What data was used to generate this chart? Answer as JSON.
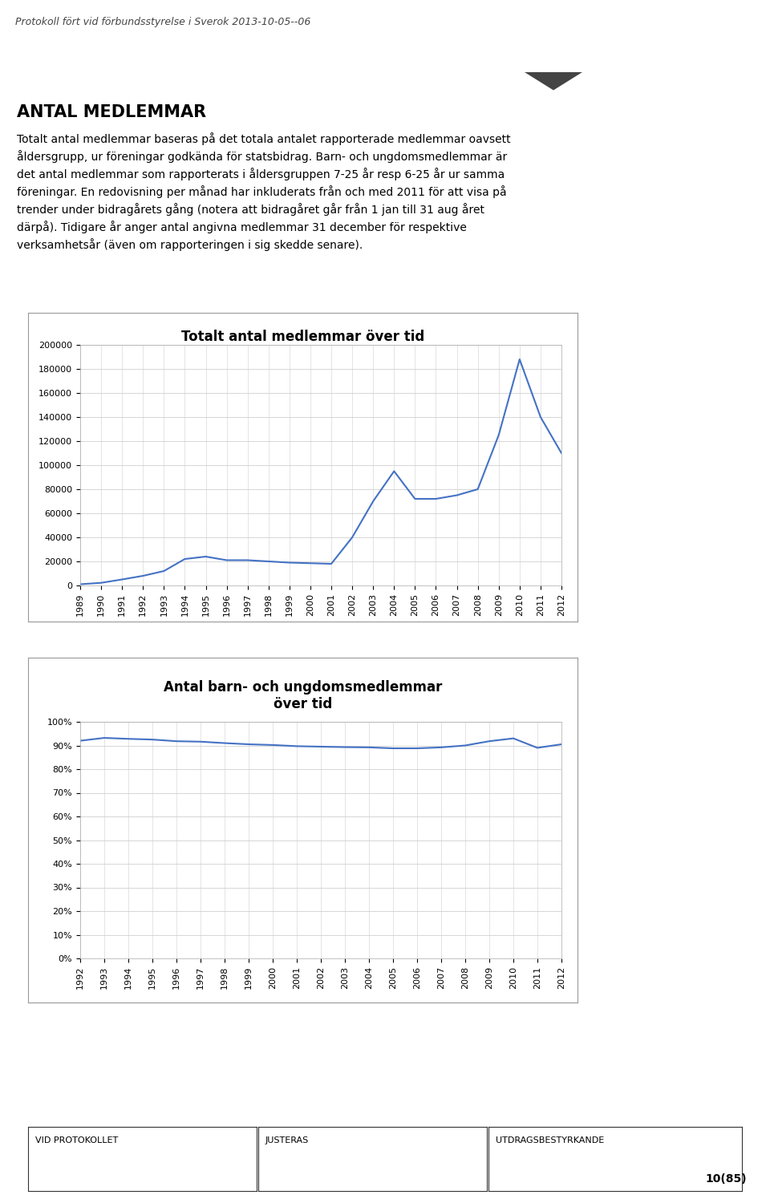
{
  "header_text": "Protokoll fört vid förbundsstyrelse i Sverok 2013-10-05--06",
  "section_title": "ANTAL MEDLEMMAR",
  "body_lines": [
    "Totalt antal medlemmar baseras på det totala antalet rapporterade medlemmar oavsett",
    "åldersgrupp, ur föreningar godkända för statsbidrag. Barn- och ungdomsmedlemmar är",
    "det antal medlemmar som rapporterats i åldersgruppen 7-25 år resp 6-25 år ur samma",
    "föreningar. En redovisning per månad har inkluderats från och med 2011 för att visa på",
    "trender under bidragårets gång (notera att bidragåret går från 1 jan till 31 aug året",
    "därpå). Tidigare år anger antal angivna medlemmar 31 december för respektive",
    "verksamhetsår (även om rapporteringen i sig skedde senare)."
  ],
  "chart1_title": "Totalt antal medlemmar över tid",
  "chart1_years": [
    1989,
    1990,
    1991,
    1992,
    1993,
    1994,
    1995,
    1996,
    1997,
    1998,
    1999,
    2000,
    2001,
    2002,
    2003,
    2004,
    2005,
    2006,
    2007,
    2008,
    2009,
    2010,
    2011,
    2012
  ],
  "chart1_values": [
    1000,
    2200,
    5000,
    8000,
    12000,
    22000,
    24000,
    21000,
    21000,
    20000,
    19000,
    18500,
    18000,
    40000,
    70000,
    95000,
    72000,
    72000,
    75000,
    80000,
    125000,
    188000,
    140000,
    110000
  ],
  "chart1_ylim": [
    0,
    200000
  ],
  "chart1_yticks": [
    0,
    20000,
    40000,
    60000,
    80000,
    100000,
    120000,
    140000,
    160000,
    180000,
    200000
  ],
  "chart1_line_color": "#4472C4",
  "chart2_title": "Antal barn- och ungdomsmedlemmar\növer tid",
  "chart2_years": [
    1992,
    1993,
    1994,
    1995,
    1996,
    1997,
    1998,
    1999,
    2000,
    2001,
    2002,
    2003,
    2004,
    2005,
    2006,
    2007,
    2008,
    2009,
    2010,
    2011,
    2012
  ],
  "chart2_values": [
    0.92,
    0.932,
    0.928,
    0.925,
    0.918,
    0.916,
    0.91,
    0.905,
    0.902,
    0.897,
    0.895,
    0.893,
    0.892,
    0.888,
    0.888,
    0.892,
    0.9,
    0.918,
    0.93,
    0.89,
    0.905
  ],
  "chart2_ylim": [
    0,
    1.0
  ],
  "chart2_yticks": [
    0.0,
    0.1,
    0.2,
    0.3,
    0.4,
    0.5,
    0.6,
    0.7,
    0.8,
    0.9,
    1.0
  ],
  "chart2_ytick_labels": [
    "0%",
    "10%",
    "20%",
    "30%",
    "40%",
    "50%",
    "60%",
    "70%",
    "80%",
    "90%",
    "100%"
  ],
  "chart2_line_color": "#4472C4",
  "footer_left": "VID PROTOKOLLET",
  "footer_mid": "JUSTERAS",
  "footer_right": "UTDRAGSBESTYRKANDE",
  "page_number": "10(85)",
  "bg_color": "#ffffff",
  "grid_color": "#d0d0d0",
  "text_color": "#000000"
}
